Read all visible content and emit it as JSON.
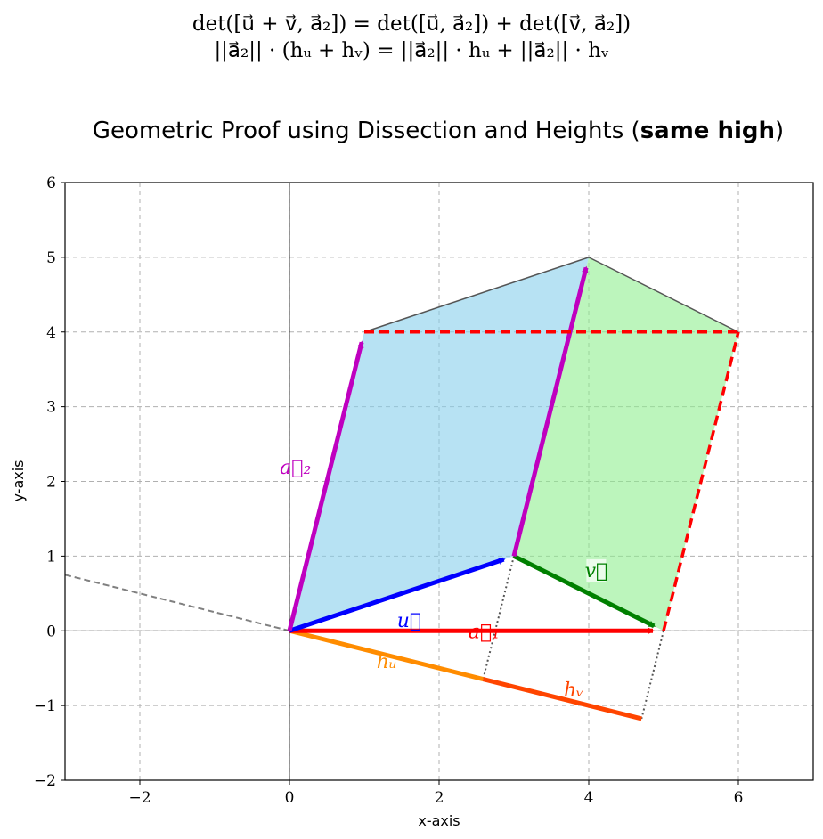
{
  "header": {
    "equation_line1": "det([u⃗ + v⃗, a⃗₂]) = det([u⃗, a⃗₂]) + det([v⃗, a⃗₂])",
    "equation_line2": "||a⃗₂|| · (hᵤ + hᵥ) = ||a⃗₂|| · hᵤ + ||a⃗₂|| · hᵥ"
  },
  "chart_data": {
    "type": "line",
    "title": "Geometric Proof using Dissection and Heights (same high)",
    "title_main": "Geometric Proof using Dissection and Heights (",
    "title_bold": "same high",
    "title_end": ")",
    "xlabel": "x-axis",
    "ylabel": "y-axis",
    "xlim": [
      -3,
      7
    ],
    "ylim": [
      -2,
      6
    ],
    "xticks": [
      -2,
      0,
      2,
      4,
      6
    ],
    "yticks": [
      -2,
      -1,
      0,
      1,
      2,
      3,
      4,
      5,
      6
    ],
    "grid": true,
    "colors": {
      "u": "#0000ff",
      "v": "#008000",
      "a1": "#ff0000",
      "a2": "#bf00bf",
      "hu": "#ff8c00",
      "hv": "#ff4500",
      "region_u": "#87ceeb",
      "region_v": "#90ee90",
      "outline": "#555555",
      "dotted": "#555555",
      "perp_line": "#808080"
    },
    "regions": [
      {
        "name": "u-parallelogram",
        "points": [
          [
            0,
            0
          ],
          [
            3,
            1
          ],
          [
            4,
            5
          ],
          [
            1,
            4
          ]
        ]
      },
      {
        "name": "v-parallelogram",
        "points": [
          [
            3,
            1
          ],
          [
            5,
            0
          ],
          [
            6,
            4
          ],
          [
            4,
            5
          ]
        ]
      }
    ],
    "vectors": [
      {
        "name": "u",
        "label": "u⃗",
        "from": [
          0,
          0
        ],
        "to": [
          3,
          1
        ]
      },
      {
        "name": "v",
        "label": "v⃗",
        "from": [
          3,
          1
        ],
        "to": [
          5,
          0
        ]
      },
      {
        "name": "a1",
        "label": "a⃗₁",
        "from": [
          0,
          0
        ],
        "to": [
          5,
          0
        ]
      },
      {
        "name": "a2",
        "label": "a⃗₂",
        "from": [
          0,
          0
        ],
        "to": [
          1,
          4
        ]
      },
      {
        "name": "a2-shifted",
        "label": "",
        "from": [
          3,
          1
        ],
        "to": [
          4,
          5
        ]
      }
    ],
    "dashed_red_segments": [
      {
        "from": [
          1,
          4
        ],
        "to": [
          6,
          4
        ]
      },
      {
        "from": [
          5,
          0
        ],
        "to": [
          6,
          4
        ]
      }
    ],
    "outline_segments": [
      {
        "from": [
          1,
          4
        ],
        "to": [
          4,
          5
        ]
      },
      {
        "from": [
          4,
          5
        ],
        "to": [
          6,
          4
        ]
      }
    ],
    "perpendicular_line": {
      "from": [
        -3,
        0.75
      ],
      "to": [
        0,
        0
      ]
    },
    "heights": [
      {
        "name": "h_u",
        "label": "hᵤ",
        "from": [
          0,
          0
        ],
        "to": [
          2.588,
          -0.647
        ]
      },
      {
        "name": "h_v",
        "label": "hᵥ",
        "from": [
          2.588,
          -0.647
        ],
        "to": [
          4.706,
          -1.176
        ]
      }
    ],
    "projection_lines": [
      {
        "from": [
          3,
          1
        ],
        "to": [
          2.588,
          -0.647
        ]
      },
      {
        "from": [
          5,
          0
        ],
        "to": [
          4.706,
          -1.176
        ]
      }
    ]
  }
}
